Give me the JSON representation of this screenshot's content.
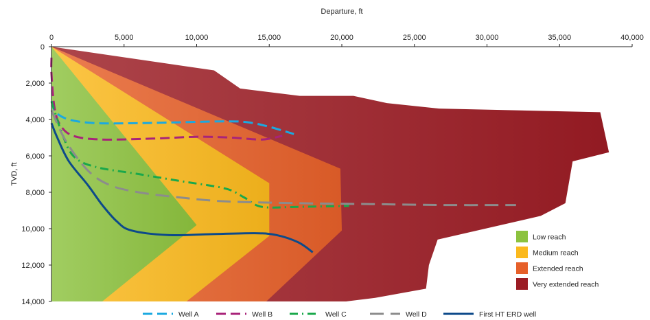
{
  "chart_data": {
    "type": "area",
    "title": "",
    "xlabel": "Departure, ft",
    "ylabel": "TVD, ft",
    "xlim": [
      0,
      40000
    ],
    "ylim": [
      0,
      14000
    ],
    "y_inverted": true,
    "x_axis_position": "top",
    "x_ticks": [
      0,
      5000,
      10000,
      15000,
      20000,
      25000,
      30000,
      35000,
      40000
    ],
    "x_tick_labels": [
      "0",
      "5,000",
      "10,000",
      "15,000",
      "20,000",
      "25,000",
      "30,000",
      "35,000",
      "40,000"
    ],
    "y_ticks": [
      0,
      2000,
      4000,
      6000,
      8000,
      10000,
      12000,
      14000
    ],
    "y_tick_labels": [
      "0",
      "2,000",
      "4,000",
      "6,000",
      "8,000",
      "10,000",
      "12,000",
      "14,000"
    ],
    "grid": false,
    "regions": [
      {
        "name": "Very extended reach",
        "color": "#9b1c24",
        "boundary": [
          [
            0,
            0
          ],
          [
            11200,
            1300
          ],
          [
            13000,
            2300
          ],
          [
            17100,
            2700
          ],
          [
            20800,
            2700
          ],
          [
            23100,
            3100
          ],
          [
            26700,
            3400
          ],
          [
            37800,
            3600
          ],
          [
            38400,
            5800
          ],
          [
            35900,
            6300
          ],
          [
            35400,
            8600
          ],
          [
            33700,
            9300
          ],
          [
            26600,
            10600
          ],
          [
            26000,
            12000
          ],
          [
            25800,
            13300
          ],
          [
            22300,
            13800
          ],
          [
            20300,
            14000
          ],
          [
            0,
            14000
          ]
        ]
      },
      {
        "name": "Extended reach",
        "color": "#e6602a",
        "boundary": [
          [
            0,
            0
          ],
          [
            19900,
            6700
          ],
          [
            20000,
            10100
          ],
          [
            14800,
            14000
          ],
          [
            0,
            14000
          ]
        ]
      },
      {
        "name": "Medium reach",
        "color": "#fbb91d",
        "boundary": [
          [
            0,
            0
          ],
          [
            15000,
            7500
          ],
          [
            15000,
            10400
          ],
          [
            9300,
            14000
          ],
          [
            0,
            14000
          ]
        ]
      },
      {
        "name": "Low reach",
        "color": "#8cc23e",
        "boundary": [
          [
            0,
            0
          ],
          [
            10000,
            9800
          ],
          [
            3500,
            14000
          ],
          [
            0,
            14000
          ]
        ]
      }
    ],
    "series": [
      {
        "name": "Well A",
        "color": "#1ba9e0",
        "dash": "dash",
        "points": [
          [
            0,
            3000
          ],
          [
            300,
            3600
          ],
          [
            1200,
            4000
          ],
          [
            3000,
            4200
          ],
          [
            6000,
            4200
          ],
          [
            9000,
            4150
          ],
          [
            12000,
            4100
          ],
          [
            13500,
            4150
          ],
          [
            15000,
            4400
          ],
          [
            16700,
            4800
          ]
        ]
      },
      {
        "name": "Well B",
        "color": "#a8237a",
        "dash": "dash",
        "points": [
          [
            0,
            600
          ],
          [
            0,
            1500
          ],
          [
            200,
            3300
          ],
          [
            600,
            4300
          ],
          [
            1500,
            4900
          ],
          [
            3500,
            5100
          ],
          [
            7000,
            5050
          ],
          [
            10000,
            4950
          ],
          [
            12500,
            5000
          ],
          [
            14500,
            5100
          ],
          [
            15900,
            4900
          ]
        ]
      },
      {
        "name": "Well C",
        "color": "#1aa84b",
        "dash": "dashdot",
        "points": [
          [
            0,
            3000
          ],
          [
            700,
            4700
          ],
          [
            1500,
            6000
          ],
          [
            3000,
            6600
          ],
          [
            6000,
            7000
          ],
          [
            9000,
            7400
          ],
          [
            12000,
            7800
          ],
          [
            13300,
            8300
          ],
          [
            14500,
            8800
          ],
          [
            17000,
            8800
          ],
          [
            20500,
            8750
          ]
        ]
      },
      {
        "name": "Well D",
        "color": "#8c8c8c",
        "dash": "longdash",
        "points": [
          [
            0,
            3500
          ],
          [
            1000,
            5200
          ],
          [
            2500,
            6800
          ],
          [
            4000,
            7600
          ],
          [
            6000,
            8000
          ],
          [
            9000,
            8300
          ],
          [
            12000,
            8500
          ],
          [
            17000,
            8600
          ],
          [
            22000,
            8650
          ],
          [
            27000,
            8700
          ],
          [
            32000,
            8700
          ]
        ]
      },
      {
        "name": "First HT ERD well",
        "color": "#0d4a8a",
        "dash": "solid",
        "points": [
          [
            0,
            4200
          ],
          [
            400,
            5000
          ],
          [
            1200,
            6300
          ],
          [
            2500,
            7600
          ],
          [
            3500,
            8700
          ],
          [
            4500,
            9600
          ],
          [
            5500,
            10100
          ],
          [
            8000,
            10350
          ],
          [
            11000,
            10300
          ],
          [
            14000,
            10250
          ],
          [
            15500,
            10350
          ],
          [
            17000,
            10750
          ],
          [
            18000,
            11300
          ]
        ]
      }
    ],
    "legend": {
      "placement": "bottom-right",
      "regions": [
        "Low reach",
        "Medium reach",
        "Extended reach",
        "Very extended reach"
      ],
      "series_placement": "bottom"
    }
  }
}
